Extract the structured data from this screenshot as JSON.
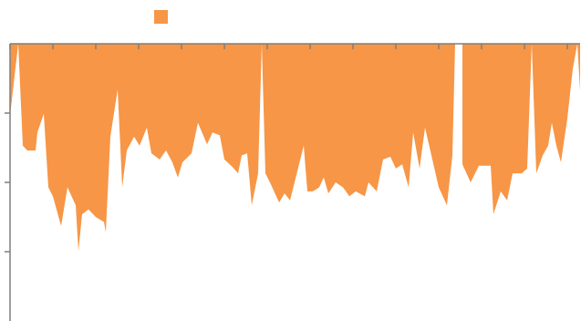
{
  "chart_data": {
    "type": "area",
    "color": "#f79646",
    "inverted": true,
    "xlim": [
      0,
      625
    ],
    "xticks": [
      0,
      47,
      94,
      141,
      188,
      235,
      282,
      329,
      376,
      423,
      470,
      517,
      564,
      611
    ],
    "ylim": [
      0,
      4
    ],
    "yticks": [
      1,
      2,
      3
    ],
    "x": [
      0,
      9,
      14,
      19,
      28,
      30,
      37,
      42,
      47,
      56,
      63,
      72,
      75,
      79,
      86,
      94,
      103,
      105,
      110,
      118,
      123,
      128,
      136,
      142,
      150,
      155,
      164,
      171,
      178,
      184,
      189,
      199,
      206,
      216,
      222,
      230,
      235,
      244,
      250,
      254,
      260,
      265,
      272,
      276,
      280,
      285,
      295,
      301,
      307,
      322,
      326,
      332,
      339,
      344,
      349,
      357,
      365,
      372,
      379,
      389,
      393,
      402,
      409,
      417,
      423,
      430,
      437,
      442,
      449,
      455,
      462,
      470,
      479,
      485,
      488,
      492,
      496,
      505,
      514,
      527,
      530,
      538,
      545,
      551,
      561,
      567,
      572,
      577,
      584,
      590,
      594,
      599,
      604,
      611,
      617,
      622,
      625
    ],
    "values": [
      1.04,
      0.0,
      1.47,
      1.54,
      1.54,
      1.28,
      1.01,
      2.07,
      2.2,
      2.63,
      2.07,
      2.33,
      2.99,
      2.46,
      2.39,
      2.5,
      2.57,
      2.72,
      1.34,
      0.66,
      2.07,
      1.54,
      1.34,
      1.47,
      1.21,
      1.58,
      1.67,
      1.54,
      1.71,
      1.93,
      1.71,
      1.58,
      1.14,
      1.45,
      1.28,
      1.32,
      1.67,
      1.78,
      1.87,
      1.61,
      1.58,
      2.33,
      1.87,
      0.0,
      1.87,
      2.0,
      2.29,
      2.16,
      2.26,
      1.47,
      2.13,
      2.13,
      2.07,
      1.93,
      2.16,
      2.0,
      2.07,
      2.2,
      2.13,
      2.2,
      2.0,
      2.13,
      1.67,
      1.63,
      1.8,
      1.74,
      2.07,
      1.28,
      1.8,
      1.21,
      1.61,
      2.07,
      2.33,
      1.61,
      0.0,
      null,
      1.74,
      2.0,
      1.76,
      1.76,
      2.46,
      2.13,
      2.26,
      1.87,
      1.87,
      1.8,
      0.0,
      1.87,
      1.61,
      1.47,
      1.14,
      1.47,
      1.71,
      1.08,
      0.36,
      0.0,
      0.68
    ]
  }
}
